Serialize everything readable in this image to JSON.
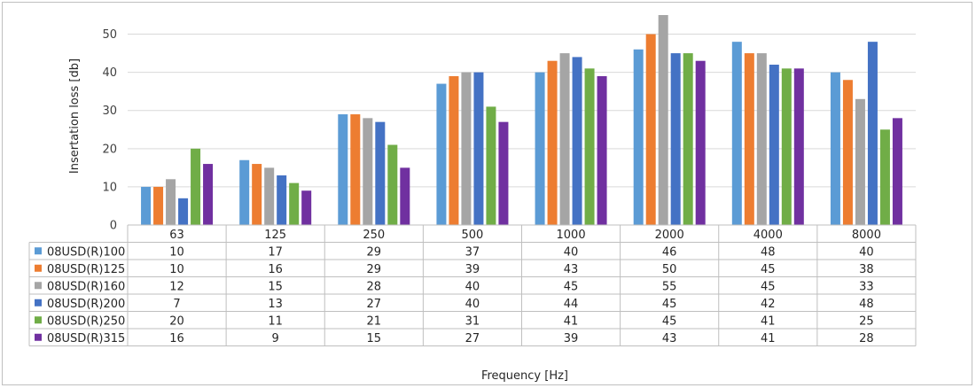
{
  "chart_data": {
    "type": "bar",
    "xlabel": "Frequency [Hz]",
    "ylabel": "Insertation loss [db]",
    "ylim": [
      0,
      55
    ],
    "yticks": [
      0,
      10,
      20,
      30,
      40,
      50
    ],
    "grid": true,
    "legend": "data-table",
    "categories": [
      "63",
      "125",
      "250",
      "500",
      "1000",
      "2000",
      "4000",
      "8000"
    ],
    "series": [
      {
        "name": "08USD(R)100",
        "color": "#5b9bd5",
        "values": [
          10,
          17,
          29,
          37,
          40,
          46,
          48,
          40
        ]
      },
      {
        "name": "08USD(R)125",
        "color": "#ed7d31",
        "values": [
          10,
          16,
          29,
          39,
          43,
          50,
          45,
          38
        ]
      },
      {
        "name": "08USD(R)160",
        "color": "#a5a5a5",
        "values": [
          12,
          15,
          28,
          40,
          45,
          55,
          45,
          33
        ]
      },
      {
        "name": "08USD(R)200",
        "color": "#4472c4",
        "values": [
          7,
          13,
          27,
          40,
          44,
          45,
          42,
          48
        ]
      },
      {
        "name": "08USD(R)250",
        "color": "#70ad47",
        "values": [
          20,
          11,
          21,
          31,
          41,
          45,
          41,
          25
        ]
      },
      {
        "name": "08USD(R)315",
        "color": "#7030a0",
        "values": [
          16,
          9,
          15,
          27,
          39,
          43,
          41,
          28
        ]
      }
    ]
  }
}
